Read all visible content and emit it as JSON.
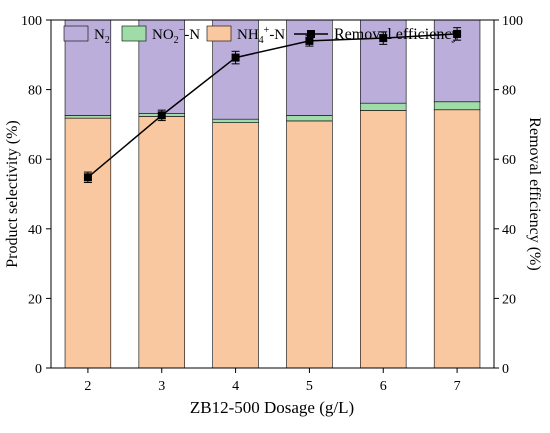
{
  "chart_data": {
    "type": "bar",
    "stacked": true,
    "categories": [
      "2",
      "3",
      "4",
      "5",
      "6",
      "7"
    ],
    "series": [
      {
        "name": "NH4+-N",
        "legend_main": "NH",
        "legend_sub": "4",
        "legend_sup": "+",
        "legend_tail": "-N",
        "color": "#FAC8A0",
        "values": [
          71.8,
          72.3,
          70.5,
          71.0,
          74.0,
          74.2
        ]
      },
      {
        "name": "NO2−-N",
        "legend_main": "NO",
        "legend_sub": "2",
        "legend_sup": "−",
        "legend_tail": "-N",
        "color": "#9FDCA8",
        "values": [
          0.8,
          0.8,
          1.0,
          1.6,
          2.1,
          2.3
        ]
      },
      {
        "name": "N2",
        "legend_main": "N",
        "legend_sub": "2",
        "legend_sup": "",
        "legend_tail": "",
        "color": "#BBAEDB",
        "values": [
          27.4,
          26.9,
          28.5,
          27.4,
          23.9,
          23.5
        ]
      }
    ],
    "line_series": {
      "name": "Removal efficiency",
      "values": [
        54.8,
        72.6,
        89.2,
        94.0,
        94.8,
        96.0
      ],
      "errors": [
        1.5,
        1.5,
        1.8,
        1.5,
        1.8,
        1.8
      ],
      "color": "#000000"
    },
    "xlabel": "ZB12-500 Dosage (g/L)",
    "ylabel": "Product selectivity (%)",
    "y2label": "Removal efficiency (%)",
    "ylim": [
      0,
      100
    ],
    "y2lim": [
      0,
      100
    ],
    "yticks": [
      "0",
      "20",
      "40",
      "60",
      "80",
      "100"
    ],
    "y2ticks": [
      "0",
      "20",
      "40",
      "60",
      "80",
      "100"
    ],
    "grid": false,
    "legend_position": "top"
  }
}
